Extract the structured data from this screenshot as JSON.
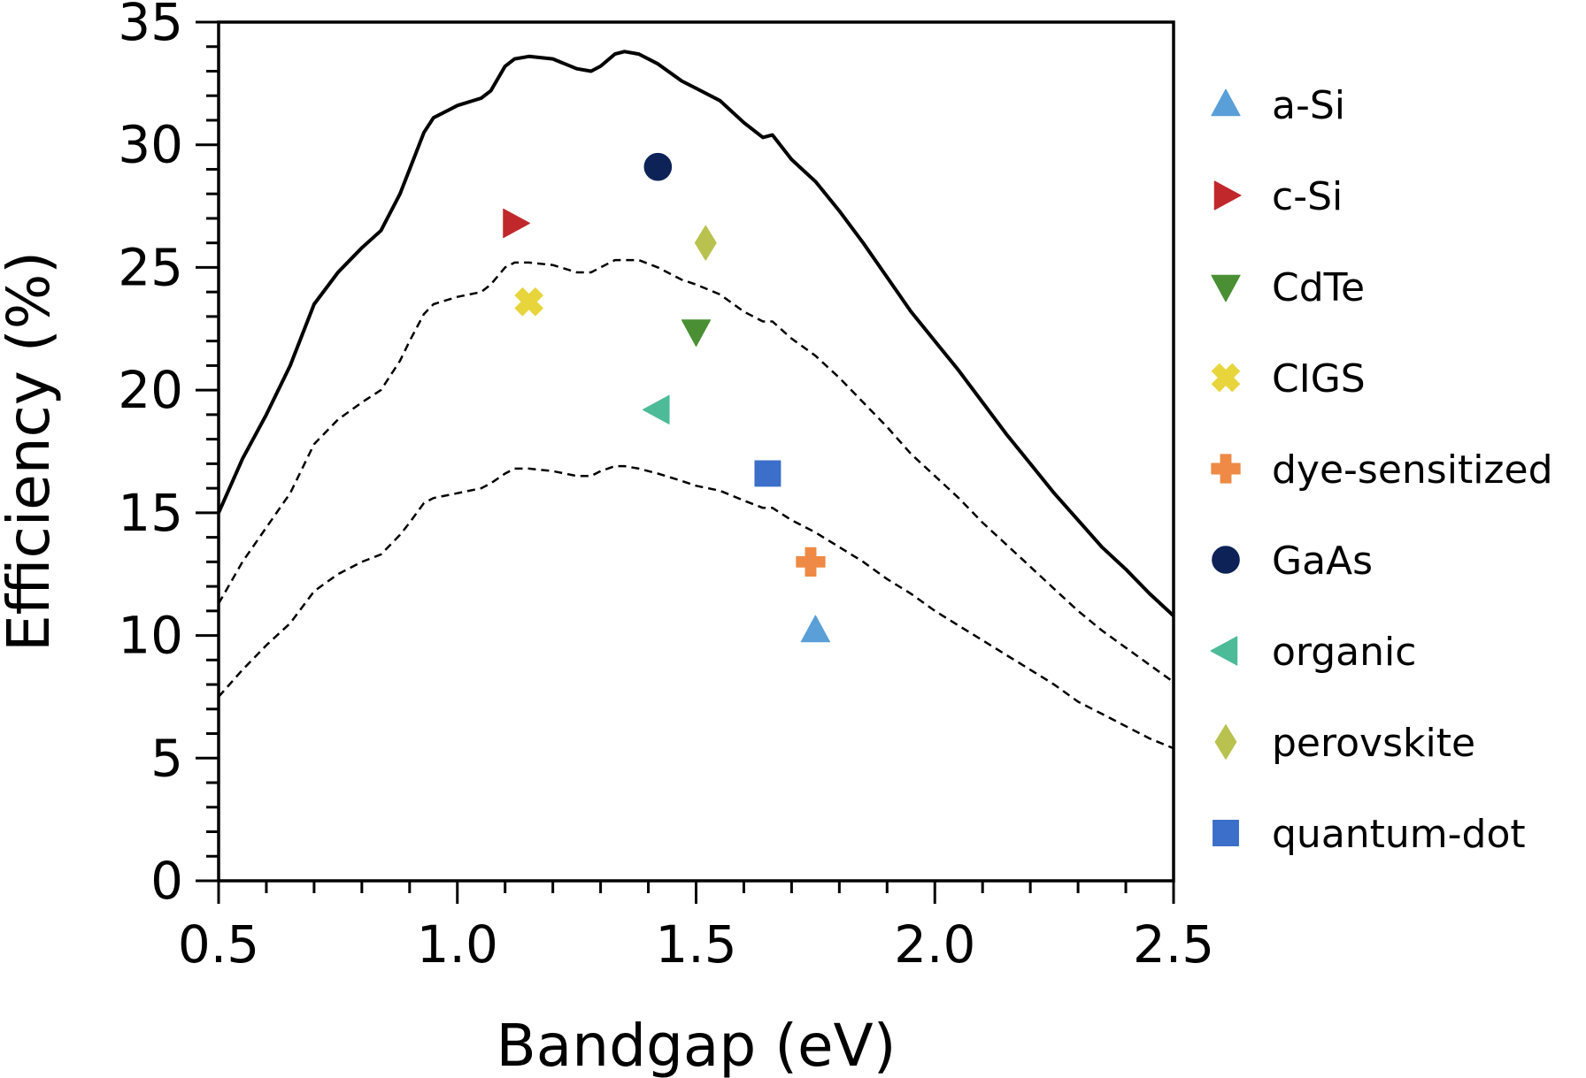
{
  "chart_data": {
    "type": "scatter",
    "xlabel": "Bandgap (eV)",
    "ylabel": "Efficiency (%)",
    "xlim": [
      0.5,
      2.5
    ],
    "ylim": [
      0,
      35
    ],
    "x_ticks": [
      "0.5",
      "1.0",
      "1.5",
      "2.0",
      "2.5"
    ],
    "y_ticks": [
      "0",
      "5",
      "10",
      "15",
      "20",
      "25",
      "30",
      "35"
    ],
    "grid": false,
    "legend_position": "right-outside",
    "curves": [
      {
        "style": "solid",
        "points": [
          [
            0.5,
            15.0
          ],
          [
            0.55,
            17.2
          ],
          [
            0.6,
            19.0
          ],
          [
            0.65,
            21.0
          ],
          [
            0.7,
            23.5
          ],
          [
            0.75,
            24.8
          ],
          [
            0.8,
            25.8
          ],
          [
            0.84,
            26.5
          ],
          [
            0.88,
            28.0
          ],
          [
            0.9,
            29.0
          ],
          [
            0.93,
            30.5
          ],
          [
            0.95,
            31.1
          ],
          [
            1.0,
            31.6
          ],
          [
            1.05,
            31.9
          ],
          [
            1.07,
            32.2
          ],
          [
            1.1,
            33.2
          ],
          [
            1.12,
            33.5
          ],
          [
            1.15,
            33.6
          ],
          [
            1.2,
            33.5
          ],
          [
            1.25,
            33.1
          ],
          [
            1.28,
            33.0
          ],
          [
            1.3,
            33.2
          ],
          [
            1.33,
            33.7
          ],
          [
            1.35,
            33.8
          ],
          [
            1.38,
            33.7
          ],
          [
            1.42,
            33.3
          ],
          [
            1.47,
            32.6
          ],
          [
            1.5,
            32.3
          ],
          [
            1.55,
            31.8
          ],
          [
            1.6,
            30.9
          ],
          [
            1.64,
            30.3
          ],
          [
            1.66,
            30.4
          ],
          [
            1.7,
            29.4
          ],
          [
            1.75,
            28.5
          ],
          [
            1.8,
            27.3
          ],
          [
            1.85,
            26.0
          ],
          [
            1.9,
            24.6
          ],
          [
            1.95,
            23.2
          ],
          [
            2.0,
            22.0
          ],
          [
            2.05,
            20.8
          ],
          [
            2.1,
            19.5
          ],
          [
            2.15,
            18.2
          ],
          [
            2.2,
            17.0
          ],
          [
            2.25,
            15.8
          ],
          [
            2.3,
            14.7
          ],
          [
            2.35,
            13.6
          ],
          [
            2.4,
            12.7
          ],
          [
            2.45,
            11.7
          ],
          [
            2.5,
            10.8
          ]
        ]
      },
      {
        "style": "dashed",
        "points": [
          [
            0.5,
            11.3
          ],
          [
            0.55,
            13.0
          ],
          [
            0.6,
            14.4
          ],
          [
            0.65,
            15.8
          ],
          [
            0.7,
            17.8
          ],
          [
            0.75,
            18.8
          ],
          [
            0.8,
            19.5
          ],
          [
            0.84,
            20.0
          ],
          [
            0.88,
            21.2
          ],
          [
            0.9,
            22.0
          ],
          [
            0.93,
            23.1
          ],
          [
            0.95,
            23.5
          ],
          [
            1.0,
            23.8
          ],
          [
            1.05,
            24.0
          ],
          [
            1.07,
            24.3
          ],
          [
            1.1,
            25.0
          ],
          [
            1.12,
            25.2
          ],
          [
            1.15,
            25.2
          ],
          [
            1.2,
            25.1
          ],
          [
            1.25,
            24.8
          ],
          [
            1.28,
            24.8
          ],
          [
            1.3,
            25.0
          ],
          [
            1.33,
            25.3
          ],
          [
            1.35,
            25.3
          ],
          [
            1.38,
            25.3
          ],
          [
            1.42,
            25.0
          ],
          [
            1.47,
            24.5
          ],
          [
            1.5,
            24.3
          ],
          [
            1.55,
            23.9
          ],
          [
            1.6,
            23.2
          ],
          [
            1.64,
            22.8
          ],
          [
            1.66,
            22.8
          ],
          [
            1.7,
            22.1
          ],
          [
            1.75,
            21.4
          ],
          [
            1.8,
            20.5
          ],
          [
            1.85,
            19.5
          ],
          [
            1.9,
            18.5
          ],
          [
            1.95,
            17.4
          ],
          [
            2.0,
            16.5
          ],
          [
            2.05,
            15.6
          ],
          [
            2.1,
            14.6
          ],
          [
            2.15,
            13.7
          ],
          [
            2.2,
            12.8
          ],
          [
            2.25,
            11.9
          ],
          [
            2.3,
            11.0
          ],
          [
            2.35,
            10.2
          ],
          [
            2.4,
            9.5
          ],
          [
            2.45,
            8.8
          ],
          [
            2.5,
            8.1
          ]
        ]
      },
      {
        "style": "dashed",
        "points": [
          [
            0.5,
            7.5
          ],
          [
            0.55,
            8.6
          ],
          [
            0.6,
            9.6
          ],
          [
            0.65,
            10.5
          ],
          [
            0.7,
            11.8
          ],
          [
            0.75,
            12.5
          ],
          [
            0.8,
            13.0
          ],
          [
            0.84,
            13.3
          ],
          [
            0.88,
            14.1
          ],
          [
            0.9,
            14.6
          ],
          [
            0.93,
            15.4
          ],
          [
            0.95,
            15.6
          ],
          [
            1.0,
            15.8
          ],
          [
            1.05,
            16.0
          ],
          [
            1.07,
            16.2
          ],
          [
            1.1,
            16.6
          ],
          [
            1.12,
            16.8
          ],
          [
            1.15,
            16.8
          ],
          [
            1.2,
            16.7
          ],
          [
            1.25,
            16.5
          ],
          [
            1.28,
            16.5
          ],
          [
            1.3,
            16.7
          ],
          [
            1.33,
            16.9
          ],
          [
            1.35,
            16.9
          ],
          [
            1.38,
            16.8
          ],
          [
            1.42,
            16.6
          ],
          [
            1.47,
            16.3
          ],
          [
            1.5,
            16.1
          ],
          [
            1.55,
            15.9
          ],
          [
            1.6,
            15.5
          ],
          [
            1.64,
            15.2
          ],
          [
            1.66,
            15.2
          ],
          [
            1.7,
            14.7
          ],
          [
            1.75,
            14.2
          ],
          [
            1.8,
            13.6
          ],
          [
            1.85,
            13.0
          ],
          [
            1.9,
            12.3
          ],
          [
            1.95,
            11.7
          ],
          [
            2.0,
            11.0
          ],
          [
            2.05,
            10.4
          ],
          [
            2.1,
            9.8
          ],
          [
            2.15,
            9.2
          ],
          [
            2.2,
            8.6
          ],
          [
            2.25,
            8.0
          ],
          [
            2.3,
            7.3
          ],
          [
            2.35,
            6.8
          ],
          [
            2.4,
            6.3
          ],
          [
            2.45,
            5.8
          ],
          [
            2.5,
            5.4
          ]
        ]
      }
    ],
    "series": [
      {
        "name": "a-Si",
        "marker": "triangle-up",
        "color": "#5a9fd8",
        "x": 1.75,
        "y": 10.2
      },
      {
        "name": "c-Si",
        "marker": "triangle-right",
        "color": "#c0282c",
        "x": 1.12,
        "y": 26.8
      },
      {
        "name": "CdTe",
        "marker": "triangle-down",
        "color": "#4a8f34",
        "x": 1.5,
        "y": 22.4
      },
      {
        "name": "CIGS",
        "marker": "x-filled",
        "color": "#e8d53b",
        "x": 1.15,
        "y": 23.6
      },
      {
        "name": "dye-sensitized",
        "marker": "plus-filled",
        "color": "#ee8a45",
        "x": 1.74,
        "y": 13.0
      },
      {
        "name": "GaAs",
        "marker": "circle",
        "color": "#0d2358",
        "x": 1.42,
        "y": 29.1
      },
      {
        "name": "organic",
        "marker": "triangle-left",
        "color": "#4dbb98",
        "x": 1.42,
        "y": 19.2
      },
      {
        "name": "perovskite",
        "marker": "diamond-thin",
        "color": "#b9c24e",
        "x": 1.52,
        "y": 26.0
      },
      {
        "name": "quantum-dot",
        "marker": "square",
        "color": "#3b6fc9",
        "x": 1.65,
        "y": 16.6
      }
    ]
  }
}
